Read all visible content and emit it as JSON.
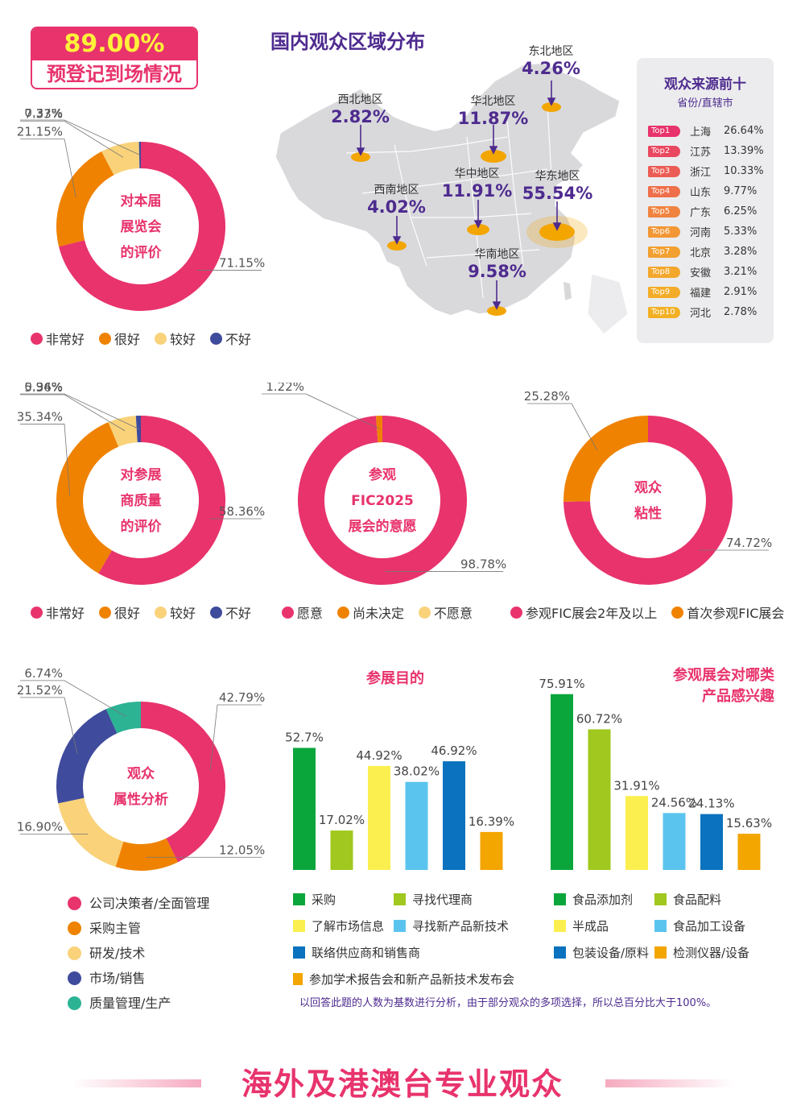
{
  "badge": {
    "value": "89.00%",
    "label": "预登记到场情况"
  },
  "map": {
    "title": "国内观众区域分布",
    "regions": [
      {
        "name": "西北地区",
        "value": "2.82%"
      },
      {
        "name": "华北地区",
        "value": "11.87%"
      },
      {
        "name": "东北地区",
        "value": "4.26%"
      },
      {
        "name": "华中地区",
        "value": "11.91%"
      },
      {
        "name": "华东地区",
        "value": "55.54%"
      },
      {
        "name": "西南地区",
        "value": "4.02%"
      },
      {
        "name": "华南地区",
        "value": "9.58%"
      }
    ]
  },
  "top10": {
    "title": "观众来源前十",
    "subtitle": "省份/直辖市",
    "rows": [
      {
        "rank": "Top1",
        "province": "上海",
        "pct": "26.64%"
      },
      {
        "rank": "Top2",
        "province": "江苏",
        "pct": "13.39%"
      },
      {
        "rank": "Top3",
        "province": "浙江",
        "pct": "10.33%"
      },
      {
        "rank": "Top4",
        "province": "山东",
        "pct": "9.77%"
      },
      {
        "rank": "Top5",
        "province": "广东",
        "pct": "6.25%"
      },
      {
        "rank": "Top6",
        "province": "河南",
        "pct": "5.33%"
      },
      {
        "rank": "Top7",
        "province": "北京",
        "pct": "3.28%"
      },
      {
        "rank": "Top8",
        "province": "安徽",
        "pct": "3.21%"
      },
      {
        "rank": "Top9",
        "province": "福建",
        "pct": "2.91%"
      },
      {
        "rank": "Top10",
        "province": "河北",
        "pct": "2.78%"
      }
    ]
  },
  "colors": {
    "pink": "#e8336c",
    "orange": "#ef8200",
    "lightyellow": "#f9d27a",
    "navy": "#3f4b9c",
    "teal": "#2bb394",
    "green": "#0aa63c",
    "lime": "#a0c81e",
    "yellow": "#fbef4f",
    "skyblue": "#5bc4ee",
    "blue": "#0a72be",
    "amber": "#f3a500",
    "purple": "#4e2b8f"
  },
  "chart_data": [
    {
      "type": "pie",
      "center_label": [
        "对本届",
        "展览会",
        "的评价"
      ],
      "categories": [
        "非常好",
        "很好",
        "较好",
        "不好"
      ],
      "values": [
        71.15,
        21.15,
        7.33,
        0.37
      ],
      "labels": [
        "71.15%",
        "21.15%",
        "7.33%",
        "0.37%"
      ]
    },
    {
      "type": "pie",
      "center_label": [
        "对参展",
        "商质量",
        "的评价"
      ],
      "categories": [
        "非常好",
        "很好",
        "较好",
        "不好"
      ],
      "values": [
        58.36,
        35.34,
        5.36,
        0.94
      ],
      "labels": [
        "58.36%",
        "35.34%",
        "5.36%",
        "0.94%"
      ]
    },
    {
      "type": "pie",
      "center_label": [
        "参观",
        "FIC2025",
        "展会的意愿"
      ],
      "categories": [
        "愿意",
        "尚未决定",
        "不愿意"
      ],
      "values": [
        98.78,
        1.22,
        0
      ],
      "labels": [
        "98.78%",
        "1.22%"
      ]
    },
    {
      "type": "pie",
      "center_label": [
        "观众",
        "粘性"
      ],
      "categories": [
        "参观FIC展会2年及以上",
        "首次参观FIC展会"
      ],
      "values": [
        74.72,
        25.28
      ],
      "labels": [
        "74.72%",
        "25.28%"
      ]
    },
    {
      "type": "pie",
      "center_label": [
        "观众",
        "属性分析"
      ],
      "categories": [
        "公司决策者/全面管理",
        "采购主管",
        "研发/技术",
        "市场/销售",
        "质量管理/生产"
      ],
      "values": [
        42.79,
        12.05,
        16.9,
        21.52,
        6.74
      ],
      "labels": [
        "42.79%",
        "12.05%",
        "16.90%",
        "21.52%",
        "6.74%"
      ]
    },
    {
      "type": "bar",
      "title": "参展目的",
      "categories": [
        "采购",
        "寻找代理商",
        "了解市场信息",
        "寻找新产品新技术",
        "联络供应商和销售商",
        "参加学术报告会和新产品新技术发布会"
      ],
      "values": [
        52.7,
        17.02,
        44.92,
        38.02,
        46.92,
        16.39
      ],
      "labels": [
        "52.7%",
        "17.02%",
        "44.92%",
        "38.02%",
        "46.92%",
        "16.39%"
      ]
    },
    {
      "type": "bar",
      "title": "参观展会对哪类产品感兴趣",
      "title_lines": [
        "参观展会对哪类",
        "产品感兴趣"
      ],
      "categories": [
        "食品添加剂",
        "食品配料",
        "半成品",
        "食品加工设备",
        "包装设备/原料",
        "检测仪器/设备"
      ],
      "values": [
        75.91,
        60.72,
        31.91,
        24.56,
        24.13,
        15.63
      ],
      "labels": [
        "75.91%",
        "60.72%",
        "31.91%",
        "24.56%",
        "24.13%",
        "15.63%"
      ]
    }
  ],
  "note": "以回答此题的人数为基数进行分析，由于部分观众的多项选择，所以总百分比大于100%。",
  "footer": {
    "title": "海外及港澳台专业观众"
  }
}
